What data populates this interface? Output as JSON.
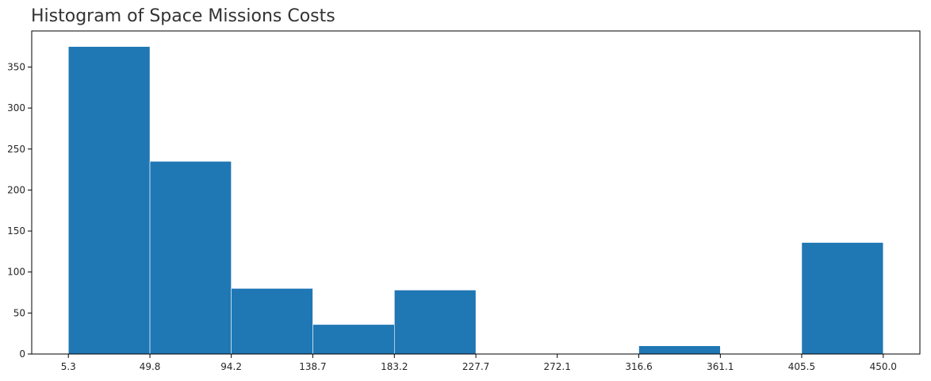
{
  "chart_data": {
    "type": "bar",
    "title": "Histogram of Space Missions Costs",
    "xlabel": "",
    "ylabel": "",
    "bin_edges": [
      5.3,
      49.8,
      94.2,
      138.7,
      183.2,
      227.7,
      272.1,
      316.6,
      361.1,
      405.5,
      450.0
    ],
    "xtick_labels": [
      "5.3",
      "49.8",
      "94.2",
      "138.7",
      "183.2",
      "227.7",
      "272.1",
      "316.6",
      "361.1",
      "405.5",
      "450.0"
    ],
    "values": [
      375,
      235,
      80,
      36,
      78,
      0,
      0,
      10,
      0,
      136
    ],
    "yticks": [
      0,
      50,
      100,
      150,
      200,
      250,
      300,
      350
    ],
    "ylim": [
      0,
      394
    ],
    "bar_color": "#1f77b4",
    "grid": false
  }
}
